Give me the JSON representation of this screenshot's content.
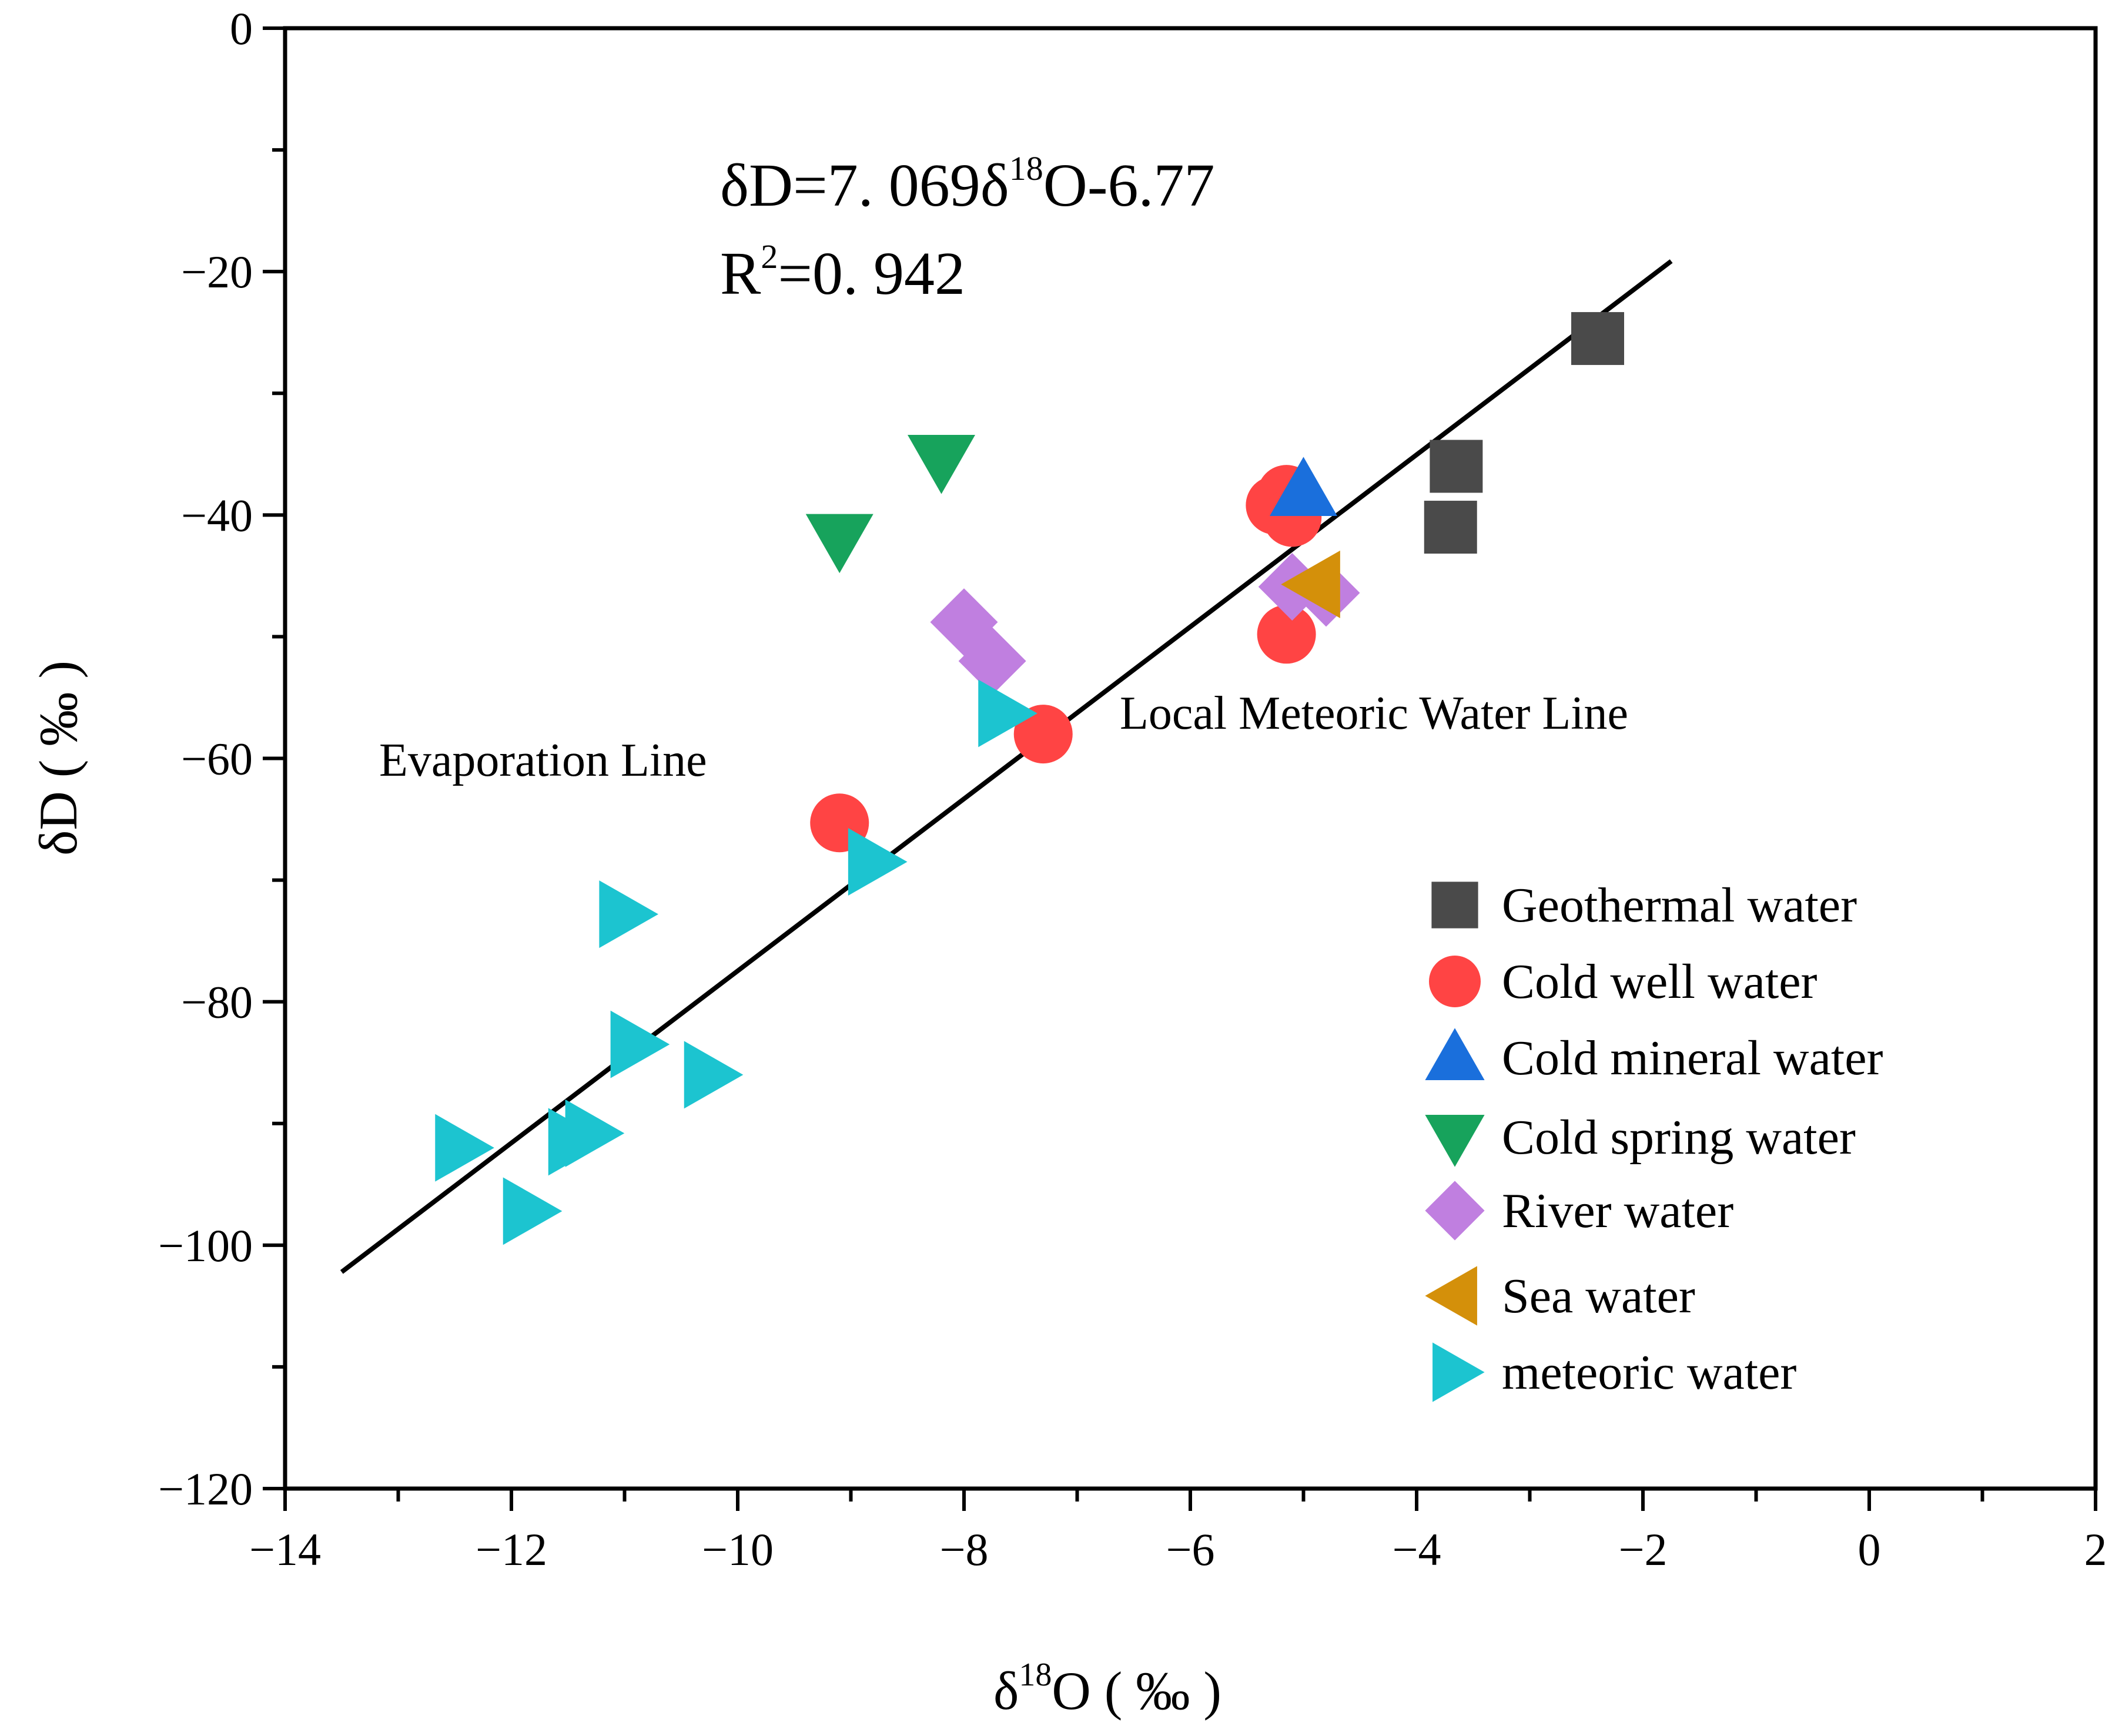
{
  "chart_data": {
    "type": "scatter",
    "xlabel": "δ18O ( ‰ )",
    "xlabel_parts": {
      "symbol": "δ",
      "superscript": "18",
      "base": "O ( ‰ )"
    },
    "ylabel": "δD ( ‰ )",
    "xlim": [
      -14,
      2
    ],
    "ylim": [
      -120,
      0
    ],
    "xticks": [
      -14,
      -12,
      -10,
      -8,
      -6,
      -4,
      -2,
      0,
      2
    ],
    "xtick_labels": [
      "−14",
      "−12",
      "−10",
      "−8",
      "−6",
      "−4",
      "−2",
      "0",
      "2"
    ],
    "yticks": [
      0,
      -20,
      -40,
      -60,
      -80,
      -100,
      -120
    ],
    "ytick_labels": [
      "0",
      "−20",
      "−40",
      "−60",
      "−80",
      "−100",
      "−120"
    ],
    "grid": false,
    "legend_position": "right",
    "regression": {
      "slope": 7.069,
      "intercept": -6.77,
      "x_range": [
        -13.5,
        -1.75
      ],
      "equation_parts": {
        "a": "δD=7. 069δ",
        "sup": "18",
        "b": "O-6.77"
      },
      "r2_parts": {
        "a": "R",
        "sup": "2",
        "b": "=0. 942"
      }
    },
    "annotations": {
      "evaporation": "Evaporation Line",
      "lmwl": "Local Meteoric Water Line"
    },
    "series": [
      {
        "name": "Geothermal water",
        "marker": "square",
        "color": "#4a4a4a",
        "points": [
          [
            -2.4,
            -25.5
          ],
          [
            -3.65,
            -36
          ],
          [
            -3.7,
            -41
          ]
        ]
      },
      {
        "name": "Cold well water",
        "marker": "circle",
        "color": "#ff4444",
        "points": [
          [
            -5.25,
            -39.2
          ],
          [
            -5.15,
            -38.3
          ],
          [
            -5.1,
            -40.2
          ],
          [
            -5.15,
            -49.8
          ],
          [
            -7.3,
            -58
          ],
          [
            -9.1,
            -65.3
          ]
        ]
      },
      {
        "name": "Cold mineral water",
        "marker": "triangle-up",
        "color": "#1a6fdc",
        "points": [
          [
            -5.0,
            -38
          ]
        ]
      },
      {
        "name": "Cold spring water",
        "marker": "triangle-down",
        "color": "#17a35c",
        "points": [
          [
            -8.2,
            -35.5
          ],
          [
            -9.1,
            -42
          ]
        ]
      },
      {
        "name": "River water",
        "marker": "diamond",
        "color": "#c07fe0",
        "points": [
          [
            -8.0,
            -48.8
          ],
          [
            -7.75,
            -52
          ],
          [
            -5.1,
            -45.9
          ],
          [
            -4.8,
            -46.4
          ]
        ]
      },
      {
        "name": "Sea water",
        "marker": "triangle-left",
        "color": "#d4900a",
        "points": [
          [
            -4.9,
            -45.7
          ]
        ]
      },
      {
        "name": "meteoric water",
        "marker": "triangle-right",
        "color": "#1cc4d0",
        "points": [
          [
            -7.65,
            -56.3
          ],
          [
            -8.8,
            -68.5
          ],
          [
            -11.0,
            -72.8
          ],
          [
            -10.9,
            -83.5
          ],
          [
            -10.25,
            -86
          ],
          [
            -12.45,
            -92
          ],
          [
            -11.45,
            -91.5
          ],
          [
            -11.3,
            -90.8
          ],
          [
            -11.85,
            -97.2
          ]
        ]
      }
    ]
  }
}
